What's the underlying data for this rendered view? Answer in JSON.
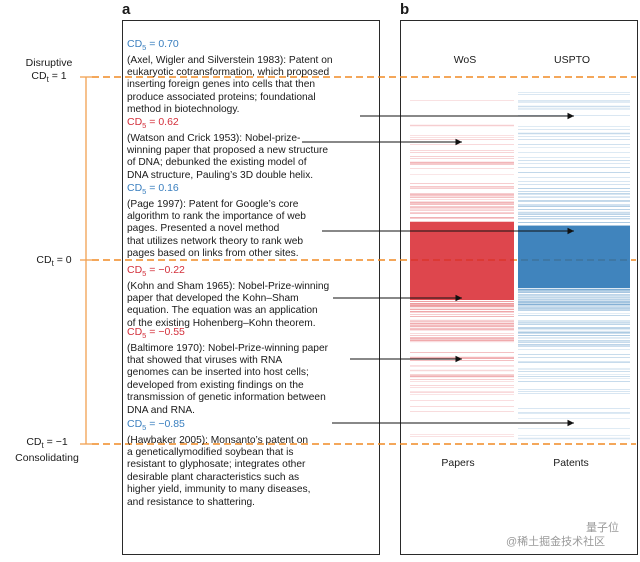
{
  "panel_a": {
    "label": "a",
    "scale": {
      "top": [
        "Disruptive",
        "CD",
        "t",
        "= 1"
      ],
      "mid": [
        "CD",
        "t",
        "= 0"
      ],
      "bottom": [
        "CD",
        "t",
        "= −1",
        "Consolidating"
      ]
    },
    "entries": [
      {
        "cd_prefix": "CD",
        "cd_sub": "5",
        "cd_value": "= 0.70",
        "sign": "pos",
        "lines": [
          "(Axel, Wigler and Silverstein 1983): Patent on",
          "eukaryotic cotransformation, which proposed",
          "inserting foreign genes into cells that then",
          "produce associated proteins; foundational",
          "method in biotechnology."
        ]
      },
      {
        "cd_prefix": "CD",
        "cd_sub": "5",
        "cd_value": "= 0.62",
        "sign": "neg",
        "lines": [
          "(Watson and Crick 1953): Nobel-prize-",
          "winning paper that proposed a new structure",
          "of DNA; debunked the existing model of",
          "DNA structure, Pauling’s 3D double helix."
        ]
      },
      {
        "cd_prefix": "CD",
        "cd_sub": "5",
        "cd_value": "= 0.16",
        "sign": "pos",
        "lines": [
          "(Page 1997): Patent for Google’s core",
          "algorithm to rank the importance of web",
          "pages. Presented a novel method",
          "that utilizes network theory to rank web",
          "pages based on links from other sites."
        ]
      },
      {
        "cd_prefix": "CD",
        "cd_sub": "5",
        "cd_value": "= −0.22",
        "sign": "neg",
        "lines": [
          "(Kohn and Sham 1965): Nobel-Prize-winning",
          "paper that developed the Kohn–Sham",
          "equation. The equation was an application",
          "of the existing Hohenberg–Kohn theorem."
        ]
      },
      {
        "cd_prefix": "CD",
        "cd_sub": "5",
        "cd_value": "= −0.55",
        "sign": "neg",
        "lines": [
          "(Baltimore 1970): Nobel-Prize-winning paper",
          "that showed that viruses with RNA",
          "genomes can be inserted into host cells;",
          "developed from existing findings on the",
          "transmission of genetic information between",
          "DNA and RNA."
        ]
      },
      {
        "cd_prefix": "CD",
        "cd_sub": "5",
        "cd_value": "= −0.85",
        "sign": "pos",
        "lines": [
          "(Hawbaker 2005): Monsanto’s patent on",
          "a geneticallymodified soybean that is",
          "resistant to glyphosate; integrates other",
          "desirable plant characteristics such as",
          "higher yield, immunity to many diseases,",
          "and resistance to shattering."
        ]
      }
    ]
  },
  "panel_b": {
    "label": "b",
    "columns": [
      "WoS",
      "USPTO"
    ],
    "footers": [
      "Papers",
      "Patents"
    ],
    "colors": {
      "papers": "#d8262e",
      "patents": "#1f6fb2",
      "dashed": "#f08a24",
      "axis": "#f2a050"
    }
  },
  "watermark": {
    "left": "@稀土掘金技术社区",
    "right": "量子位"
  }
}
